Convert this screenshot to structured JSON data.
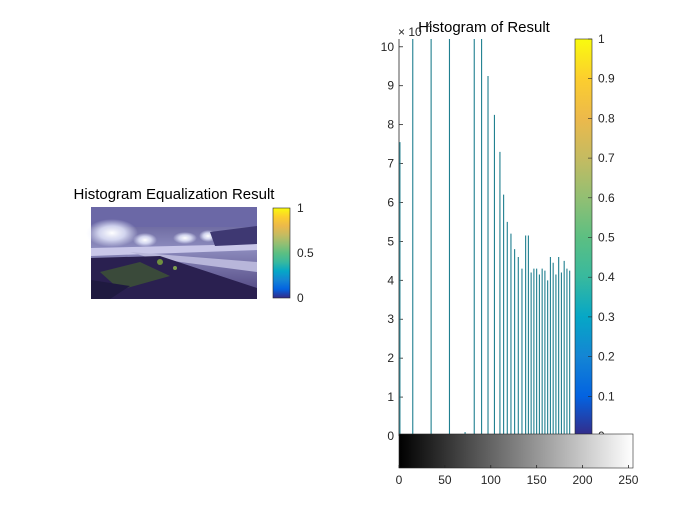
{
  "left_panel": {
    "title": "Histogram Equalization Result",
    "colorbar": {
      "ticks": [
        "0",
        "0.5",
        "1"
      ],
      "colormap": "parula"
    }
  },
  "right_panel": {
    "colorbar": {
      "ticks": [
        "0",
        "0.1",
        "0.2",
        "0.3",
        "0.4",
        "0.5",
        "0.6",
        "0.7",
        "0.8",
        "0.9",
        "1"
      ],
      "colormap": "parula"
    },
    "gray_bar": {
      "colormap": "gray",
      "range": [
        0,
        255
      ]
    }
  },
  "chart_data": {
    "type": "bar",
    "title": "Histogram of Result",
    "exponent_label": "× 10",
    "exponent": "4",
    "xlabel": "",
    "ylabel": "",
    "xlim": [
      0,
      255
    ],
    "ylim": [
      0,
      10.2
    ],
    "xticks": [
      0,
      50,
      100,
      150,
      200,
      250
    ],
    "yticks": [
      0,
      1,
      2,
      3,
      4,
      5,
      6,
      7,
      8,
      9,
      10
    ],
    "bar_color": "#1f7f8f",
    "bins": [
      1,
      15,
      35,
      55,
      72,
      82,
      90,
      97,
      104,
      110,
      114,
      118,
      122,
      126,
      130,
      134,
      138,
      141,
      144,
      147,
      150,
      153,
      156,
      159,
      162,
      165,
      168,
      171,
      174,
      177,
      180,
      183,
      186
    ],
    "values": [
      7.55,
      10.2,
      10.2,
      10.2,
      0.1,
      10.2,
      10.2,
      9.25,
      8.25,
      7.3,
      6.2,
      5.5,
      5.2,
      4.8,
      4.6,
      4.3,
      5.15,
      5.15,
      4.2,
      4.3,
      4.3,
      4.15,
      4.3,
      4.25,
      4.0,
      4.6,
      4.45,
      4.15,
      4.6,
      4.2,
      4.5,
      4.3,
      4.25
    ]
  }
}
